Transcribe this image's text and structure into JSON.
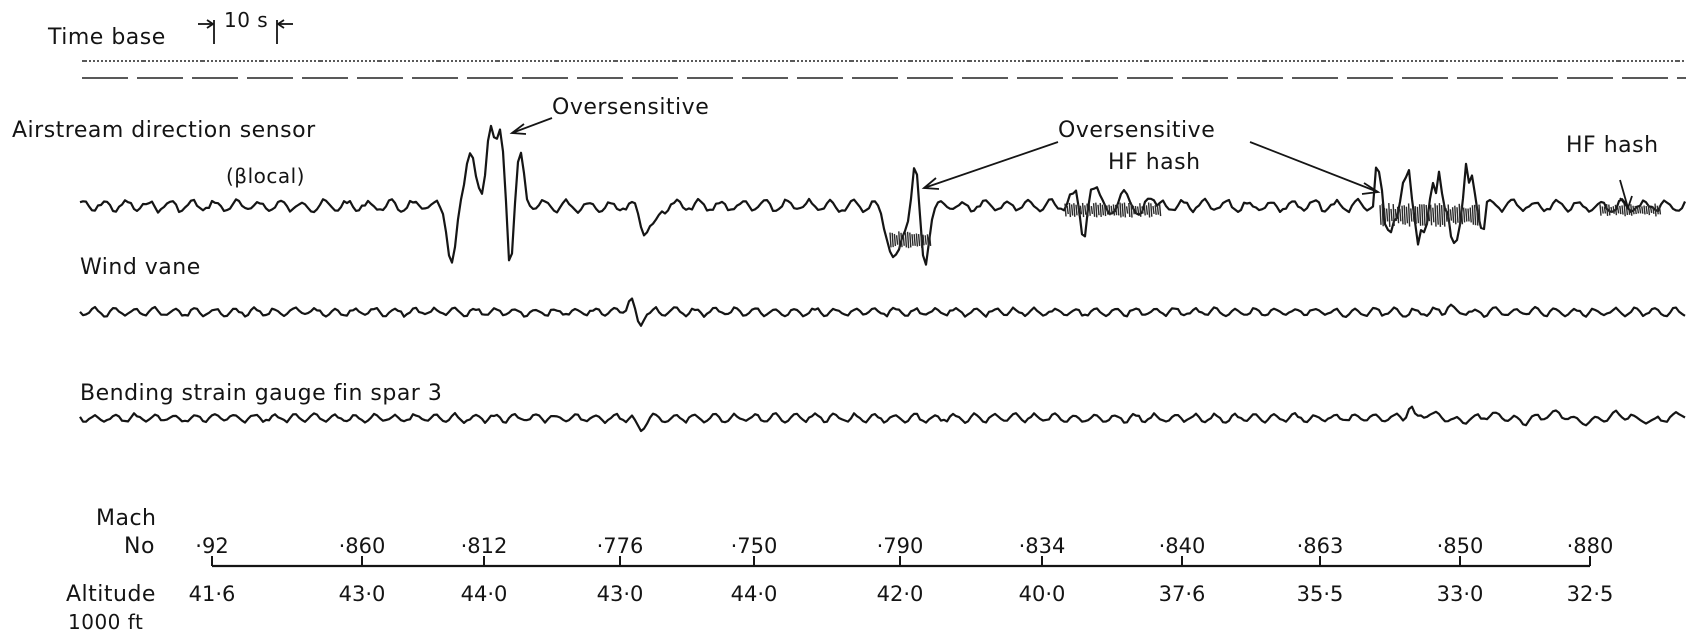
{
  "time_base": {
    "label": "Time base",
    "scale": "10 s"
  },
  "channels": [
    {
      "id": "airstream",
      "label": "Airstream direction sensor",
      "sub_label": "(βlocal)"
    },
    {
      "id": "windvane",
      "label": "Wind vane"
    },
    {
      "id": "strain",
      "label": "Bending strain gauge fin spar 3"
    }
  ],
  "annotations": [
    {
      "id": "oversensitive-1",
      "text": "Oversensitive"
    },
    {
      "id": "oversensitive-2",
      "text": "Oversensitive"
    },
    {
      "id": "hf-hash-1",
      "text": "HF hash"
    },
    {
      "id": "hf-hash-2",
      "text": "HF hash"
    }
  ],
  "axis": {
    "mach_label": "Mach",
    "mach_label_2": "No",
    "altitude_label": "Altitude",
    "altitude_unit": "1000 ft",
    "mach": [
      "·92",
      "·860",
      "·812",
      "·776",
      "·750",
      "·790",
      "·834",
      "·840",
      "·863",
      "·850",
      "·880"
    ],
    "altitude": [
      "41·6",
      "43·0",
      "44·0",
      "43·0",
      "44·0",
      "42·0",
      "40·0",
      "37·6",
      "35·5",
      "33·0",
      "32·5"
    ]
  }
}
